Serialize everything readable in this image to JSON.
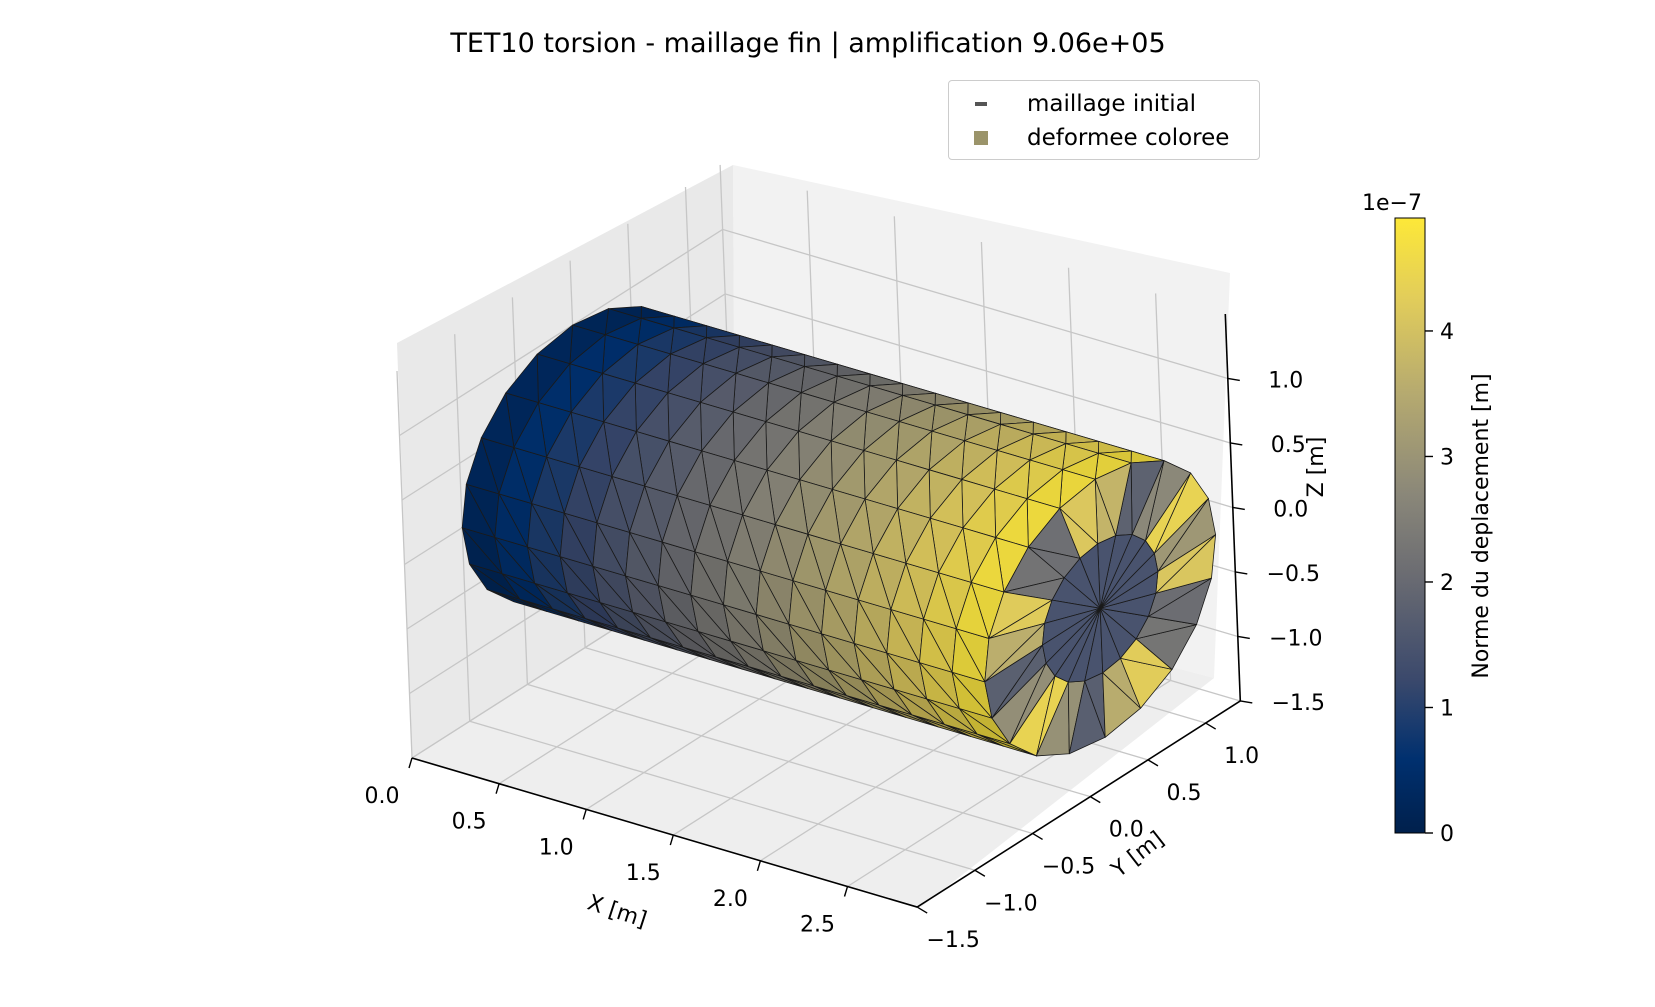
{
  "chart_data": {
    "type": "surface3d",
    "title": "TET10 torsion - maillage fin | amplification 9.06e+05",
    "legend": {
      "placement": "top-right",
      "entries": [
        {
          "label": "maillage initial",
          "marker": "line",
          "color": "#555555"
        },
        {
          "label": "deformee coloree",
          "marker": "patch",
          "color": "#9b946a"
        }
      ]
    },
    "axes": {
      "x": {
        "label": "X [m]",
        "range": [
          0.0,
          2.9
        ],
        "ticks": [
          "0.0",
          "0.5",
          "1.0",
          "1.5",
          "2.0",
          "2.5"
        ],
        "tick_values": [
          0.0,
          0.5,
          1.0,
          1.5,
          2.0,
          2.5
        ]
      },
      "y": {
        "label": "Y [m]",
        "range": [
          -1.5,
          1.3
        ],
        "ticks": [
          "−1.5",
          "−1.0",
          "−0.5",
          "0.0",
          "0.5",
          "1.0"
        ],
        "tick_values": [
          -1.5,
          -1.0,
          -0.5,
          0.0,
          0.5,
          1.0
        ]
      },
      "z": {
        "label": "Z [m]",
        "range": [
          -1.5,
          1.5
        ],
        "ticks": [
          "−1.5",
          "−1.0",
          "−0.5",
          "0.0",
          "0.5",
          "1.0"
        ],
        "tick_values": [
          -1.5,
          -1.0,
          -0.5,
          0.0,
          0.5,
          1.0
        ]
      }
    },
    "grid": true,
    "geometry": {
      "shape": "cylinder",
      "axis": "x",
      "length": 3.0,
      "radius": 1.0,
      "mesh": "TET10 fine"
    },
    "color_field": {
      "name": "Norme du deplacement",
      "min": 0.0,
      "max": 4.9e-07,
      "distribution": "increasing from x=0 to x=3"
    },
    "colorbar": {
      "label": "Norme du deplacement [m]",
      "multiplier": "1e−7",
      "ticks": [
        "0",
        "1",
        "2",
        "3",
        "4"
      ],
      "tick_values": [
        0,
        1,
        2,
        3,
        4
      ],
      "range": [
        0,
        4.9
      ],
      "colormap": "cividis",
      "colors": {
        "low": "#00204c",
        "mid": "#7c7b78",
        "high": "#fde838"
      }
    }
  }
}
